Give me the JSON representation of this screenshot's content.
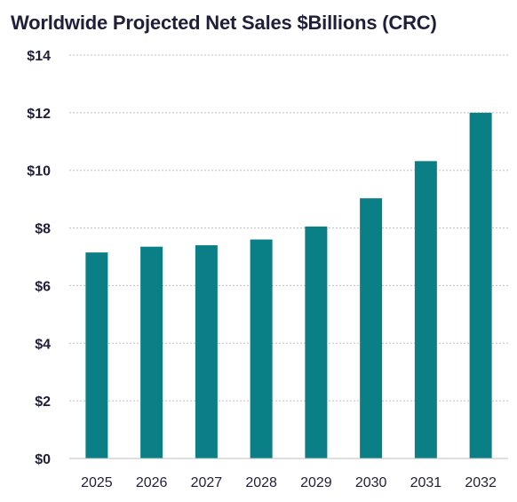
{
  "chart_data": {
    "type": "bar",
    "title": "Worldwide Projected Net Sales $Billions (CRC)",
    "xlabel": "",
    "ylabel": "",
    "categories": [
      "2025",
      "2026",
      "2027",
      "2028",
      "2029",
      "2030",
      "2031",
      "2032"
    ],
    "values": [
      7.15,
      7.35,
      7.4,
      7.6,
      8.05,
      9.03,
      10.32,
      12.0
    ],
    "ylim": [
      0,
      14
    ],
    "yticks": [
      0,
      2,
      4,
      6,
      8,
      10,
      12,
      14
    ],
    "ytick_labels": [
      "$0",
      "$2",
      "$4",
      "$6",
      "$8",
      "$10",
      "$12",
      "$14"
    ],
    "grid": true,
    "legend": "none",
    "bar_color": "#0b7f86",
    "grid_color": "#bfbfbf"
  }
}
